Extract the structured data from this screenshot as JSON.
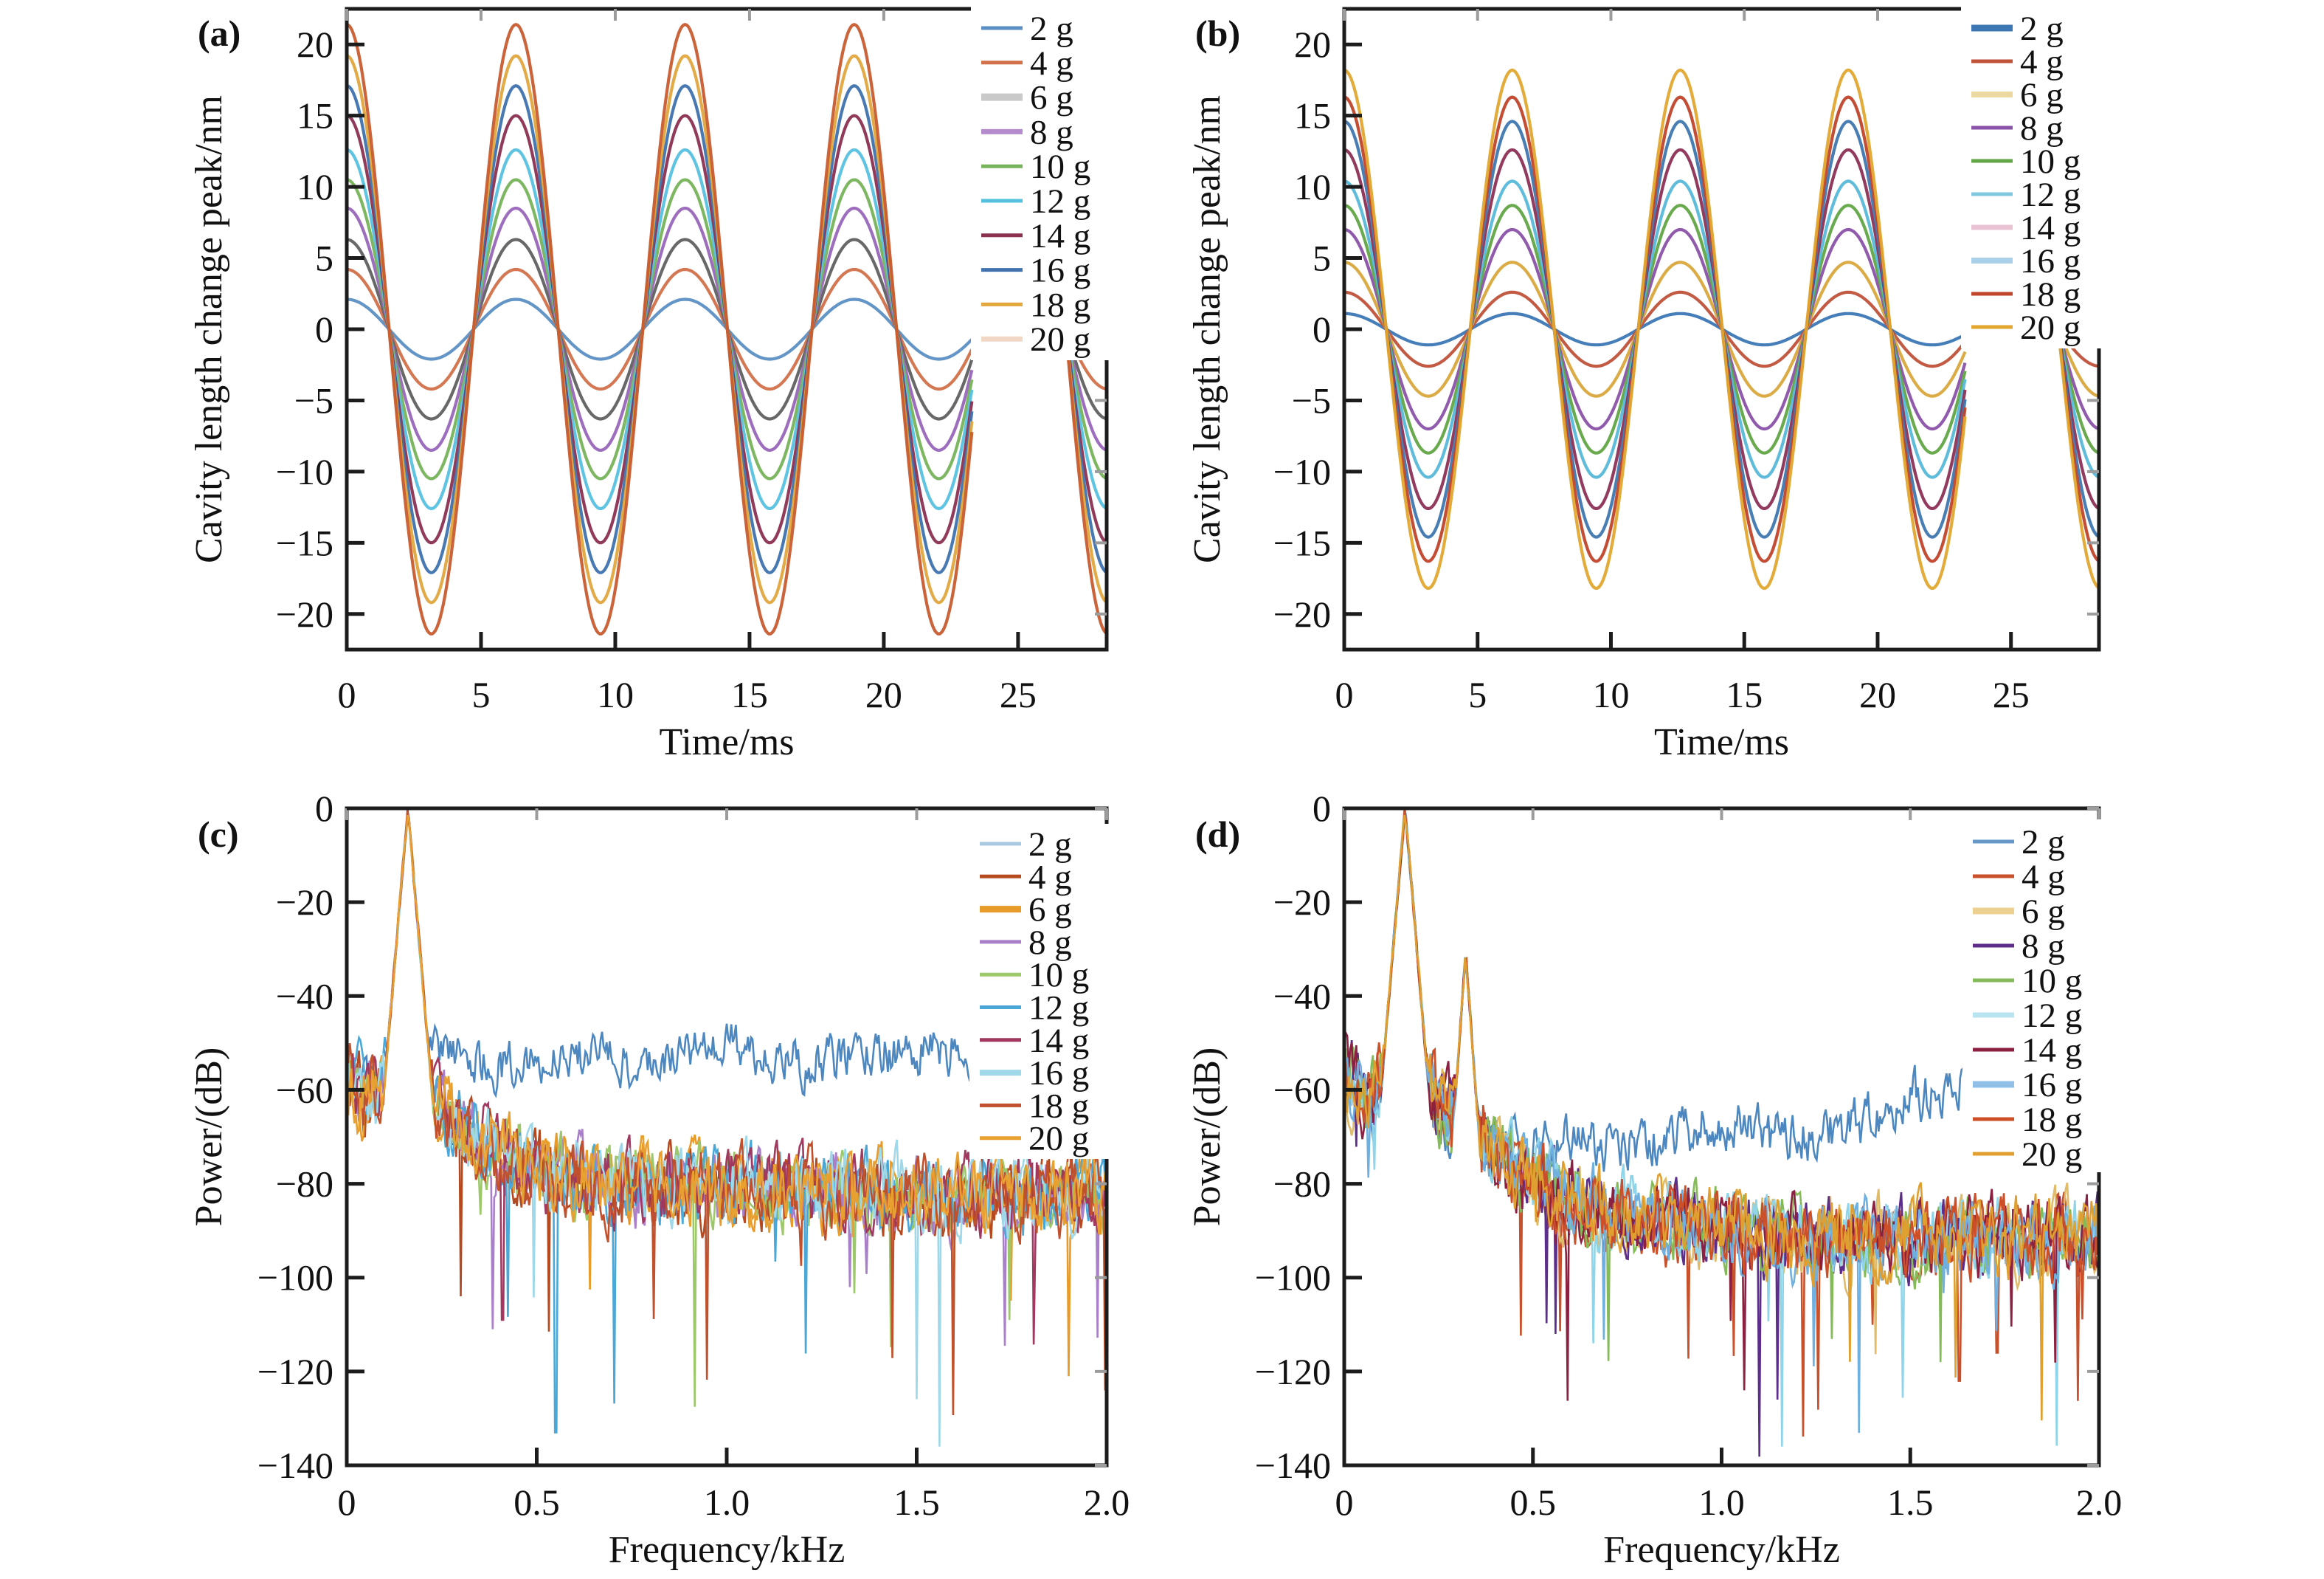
{
  "chart_data": {
    "title": "",
    "figure_type": "2x2 subplot grid",
    "background": "#ffffff",
    "frame_color": "#1c1c1c",
    "minor_tick_color": "#9c9c9c",
    "panels": [
      {
        "tag": "(a)",
        "type": "sine",
        "xlabel": "Time/ms",
        "ylabel": "Cavity length change peak/nm",
        "xlim": [
          0,
          28.3
        ],
        "ylim": [
          -22.5,
          22.5
        ],
        "xticks": [
          [
            0,
            "0"
          ],
          [
            5,
            "5"
          ],
          [
            10,
            "10"
          ],
          [
            15,
            "15"
          ],
          [
            20,
            "20"
          ],
          [
            25,
            "25"
          ]
        ],
        "yticks": [
          [
            -20,
            "−20"
          ],
          [
            -15,
            "−15"
          ],
          [
            -10,
            "−10"
          ],
          [
            -5,
            "−5"
          ],
          [
            0,
            "0"
          ],
          [
            5,
            "5"
          ],
          [
            10,
            "10"
          ],
          [
            15,
            "15"
          ],
          [
            20,
            "20"
          ]
        ],
        "period_ms": 6.3,
        "phase": "cosine",
        "segments": [
          [
            0,
            23.32
          ],
          [
            26.38,
            28.3
          ]
        ],
        "series": [
          {
            "label": "2 g",
            "color": "#5b8fc3",
            "amplitude": 2.1
          },
          {
            "label": "4 g",
            "color": "#d2704a",
            "amplitude": 4.2
          },
          {
            "label": "6 g",
            "color": "#606060",
            "legend_color": "#c9c9c9",
            "legend_lw": 10,
            "amplitude": 6.3
          },
          {
            "label": "8 g",
            "color": "#9966bb",
            "legend_color": "#b48ccd",
            "legend_lw": 7,
            "amplitude": 8.5
          },
          {
            "label": "10 g",
            "color": "#77b35a",
            "amplitude": 10.5
          },
          {
            "label": "12 g",
            "color": "#56c0e0",
            "amplitude": 12.6
          },
          {
            "label": "14 g",
            "color": "#8c2f50",
            "amplitude": 15.0
          },
          {
            "label": "16 g",
            "color": "#3f72ae",
            "amplitude": 17.1
          },
          {
            "label": "18 g",
            "color": "#e2a63d",
            "amplitude": 19.2
          },
          {
            "label": "20 g",
            "color": "#c85c30",
            "legend_color": "#f2d7c5",
            "legend_lw": 7,
            "amplitude": 21.4
          }
        ]
      },
      {
        "tag": "(b)",
        "type": "sine",
        "xlabel": "Time/ms",
        "ylabel": "Cavity length change peak/nm",
        "xlim": [
          0,
          28.3
        ],
        "ylim": [
          -22.5,
          22.5
        ],
        "xticks": [
          [
            0,
            "0"
          ],
          [
            5,
            "5"
          ],
          [
            10,
            "10"
          ],
          [
            15,
            "15"
          ],
          [
            20,
            "20"
          ],
          [
            25,
            "25"
          ]
        ],
        "yticks": [
          [
            -20,
            "−20"
          ],
          [
            -15,
            "−15"
          ],
          [
            -10,
            "−10"
          ],
          [
            -5,
            "−5"
          ],
          [
            0,
            "0"
          ],
          [
            5,
            "5"
          ],
          [
            10,
            "10"
          ],
          [
            15,
            "15"
          ],
          [
            20,
            "20"
          ]
        ],
        "period_ms": 6.3,
        "phase": "cosine",
        "segments": [
          [
            0,
            23.32
          ],
          [
            26.38,
            28.3
          ]
        ],
        "series": [
          {
            "label": "2 g",
            "color": "#3c77b5",
            "legend_lw": 9,
            "amplitude": 1.1
          },
          {
            "label": "4 g",
            "color": "#c0523a",
            "amplitude": 2.6
          },
          {
            "label": "6 g",
            "color": "#d9a73c",
            "legend_color": "#ecd9a0",
            "legend_lw": 8,
            "amplitude": 4.7
          },
          {
            "label": "8 g",
            "color": "#8a52a8",
            "amplitude": 7.0
          },
          {
            "label": "10 g",
            "color": "#61a544",
            "amplitude": 8.7
          },
          {
            "label": "12 g",
            "color": "#56b8d8",
            "legend_color": "#7fc8e0",
            "amplitude": 10.4
          },
          {
            "label": "14 g",
            "color": "#8c3055",
            "legend_color": "#e9c3d4",
            "legend_lw": 7,
            "amplitude": 12.6
          },
          {
            "label": "16 g",
            "color": "#3f77b0",
            "legend_color": "#a9cfe9",
            "legend_lw": 8,
            "amplitude": 14.6
          },
          {
            "label": "18 g",
            "color": "#c0452a",
            "amplitude": 16.3
          },
          {
            "label": "20 g",
            "color": "#e2a62f",
            "amplitude": 18.2
          }
        ]
      },
      {
        "tag": "(c)",
        "type": "spectrum",
        "xlabel": "Frequency/kHz",
        "ylabel": "Power/(dB)",
        "xlim": [
          0,
          2.0
        ],
        "ylim": [
          -140,
          0
        ],
        "xticks": [
          [
            0,
            "0"
          ],
          [
            0.5,
            "0.5"
          ],
          [
            1.0,
            "1.0"
          ],
          [
            1.5,
            "1.5"
          ],
          [
            2.0,
            "2.0"
          ]
        ],
        "yticks": [
          [
            0,
            "0"
          ],
          [
            -20,
            "−20"
          ],
          [
            -40,
            "−40"
          ],
          [
            -60,
            "−60"
          ],
          [
            -80,
            "−80"
          ],
          [
            -100,
            "−100"
          ],
          [
            -120,
            "−120"
          ],
          [
            -140,
            "−140"
          ]
        ],
        "noise_db": 7.5,
        "peaks": [
          {
            "freq_khz": 0.161,
            "power_db": 0,
            "slope_db_per_khz": 950
          }
        ],
        "default_floor": [
          [
            0,
            -57
          ],
          [
            0.05,
            -62
          ],
          [
            0.12,
            -57
          ],
          [
            0.22,
            -62
          ],
          [
            0.35,
            -71
          ],
          [
            0.5,
            -78
          ],
          [
            0.8,
            -81
          ],
          [
            1.2,
            -81
          ],
          [
            1.6,
            -83
          ],
          [
            2.0,
            -82
          ]
        ],
        "spikes": [
          {
            "series": "12 g",
            "x": 0.55,
            "db": -133
          },
          {
            "series": "16 g",
            "x": 1.56,
            "db": -136
          },
          {
            "series": "8 g",
            "x": 0.385,
            "db": -111
          },
          {
            "series": "14 g",
            "x": 0.41,
            "db": -109
          },
          {
            "series": "6 g",
            "x": 1.9,
            "db": -121
          },
          {
            "series": "4 g",
            "x": 0.3,
            "db": -104
          }
        ],
        "series": [
          {
            "label": "2 g",
            "color": "#4d87c0",
            "legend_color": "#a9c9e1",
            "noise_db": 5,
            "spike_p": 0.002,
            "floor": [
              [
                0,
                -55
              ],
              [
                0.07,
                -59
              ],
              [
                0.2,
                -53
              ],
              [
                0.4,
                -55
              ],
              [
                0.6,
                -52
              ],
              [
                0.8,
                -54
              ],
              [
                1.0,
                -50
              ],
              [
                1.2,
                -54
              ],
              [
                1.4,
                -52
              ],
              [
                1.6,
                -51
              ],
              [
                1.8,
                -53
              ],
              [
                2.0,
                -52
              ]
            ]
          },
          {
            "label": "4 g",
            "color": "#b5491f"
          },
          {
            "label": "6 g",
            "color": "#e89b28",
            "legend_lw": 9
          },
          {
            "label": "8 g",
            "color": "#a87fc8"
          },
          {
            "label": "10 g",
            "color": "#9cc86a"
          },
          {
            "label": "12 g",
            "color": "#49a8d8"
          },
          {
            "label": "14 g",
            "color": "#a03860"
          },
          {
            "label": "16 g",
            "color": "#9fd8e8",
            "legend_lw": 8
          },
          {
            "label": "18 g",
            "color": "#c1512c"
          },
          {
            "label": "20 g",
            "color": "#e8a030"
          }
        ]
      },
      {
        "tag": "(d)",
        "type": "spectrum",
        "xlabel": "Frequency/kHz",
        "ylabel": "Power/(dB)",
        "xlim": [
          0,
          2.0
        ],
        "ylim": [
          -140,
          0
        ],
        "xticks": [
          [
            0,
            "0"
          ],
          [
            0.5,
            "0.5"
          ],
          [
            1.0,
            "1.0"
          ],
          [
            1.5,
            "1.5"
          ],
          [
            2.0,
            "2.0"
          ]
        ],
        "yticks": [
          [
            0,
            "0"
          ],
          [
            -20,
            "−20"
          ],
          [
            -40,
            "−40"
          ],
          [
            -60,
            "−60"
          ],
          [
            -80,
            "−80"
          ],
          [
            -100,
            "−100"
          ],
          [
            -120,
            "−120"
          ],
          [
            -140,
            "−140"
          ]
        ],
        "noise_db": 7.5,
        "peaks": [
          {
            "freq_khz": 0.161,
            "power_db": 0,
            "slope_db_per_khz": 950
          },
          {
            "freq_khz": 0.322,
            "power_db": -31,
            "slope_db_per_khz": 1100
          }
        ],
        "default_floor": [
          [
            0,
            -56
          ],
          [
            0.05,
            -62
          ],
          [
            0.15,
            -57
          ],
          [
            0.25,
            -62
          ],
          [
            0.4,
            -74
          ],
          [
            0.6,
            -84
          ],
          [
            0.9,
            -89
          ],
          [
            1.2,
            -92
          ],
          [
            1.6,
            -92
          ],
          [
            2.0,
            -91
          ]
        ],
        "spikes": [
          {
            "series": "12 g",
            "x": 1.16,
            "db": -136
          },
          {
            "series": "12 g",
            "x": 0.66,
            "db": -114
          },
          {
            "series": "14 g",
            "x": 1.06,
            "db": -124
          },
          {
            "series": "18 g",
            "x": 1.63,
            "db": -122
          },
          {
            "series": "8 g",
            "x": 0.56,
            "db": -112
          },
          {
            "series": "10 g",
            "x": 1.58,
            "db": -118
          },
          {
            "series": "4 g",
            "x": 1.73,
            "db": -116
          }
        ],
        "series": [
          {
            "label": "2 g",
            "color": "#4d87c0",
            "legend_color": "#6898c8",
            "noise_db": 5.5,
            "spike_p": 0.002,
            "floor": [
              [
                0,
                -58
              ],
              [
                0.08,
                -64
              ],
              [
                0.3,
                -69
              ],
              [
                0.6,
                -72
              ],
              [
                0.85,
                -70
              ],
              [
                1.0,
                -66
              ],
              [
                1.15,
                -71
              ],
              [
                1.4,
                -66
              ],
              [
                1.6,
                -59
              ],
              [
                1.75,
                -60
              ],
              [
                1.9,
                -66
              ],
              [
                2.0,
                -63
              ]
            ]
          },
          {
            "label": "4 g",
            "color": "#c8502a"
          },
          {
            "label": "6 g",
            "color": "#e0bc6a",
            "legend_color": "#ecd090",
            "legend_lw": 9
          },
          {
            "label": "8 g",
            "color": "#5c2d8a"
          },
          {
            "label": "10 g",
            "color": "#84bb58"
          },
          {
            "label": "12 g",
            "color": "#8fd4e8",
            "legend_color": "#b8e4f0",
            "legend_lw": 7
          },
          {
            "label": "14 g",
            "color": "#8c2040"
          },
          {
            "label": "16 g",
            "color": "#6fb0e0",
            "legend_color": "#90c0e8",
            "legend_lw": 9
          },
          {
            "label": "18 g",
            "color": "#cc4f28"
          },
          {
            "label": "20 g",
            "color": "#e0a030"
          }
        ]
      }
    ]
  }
}
